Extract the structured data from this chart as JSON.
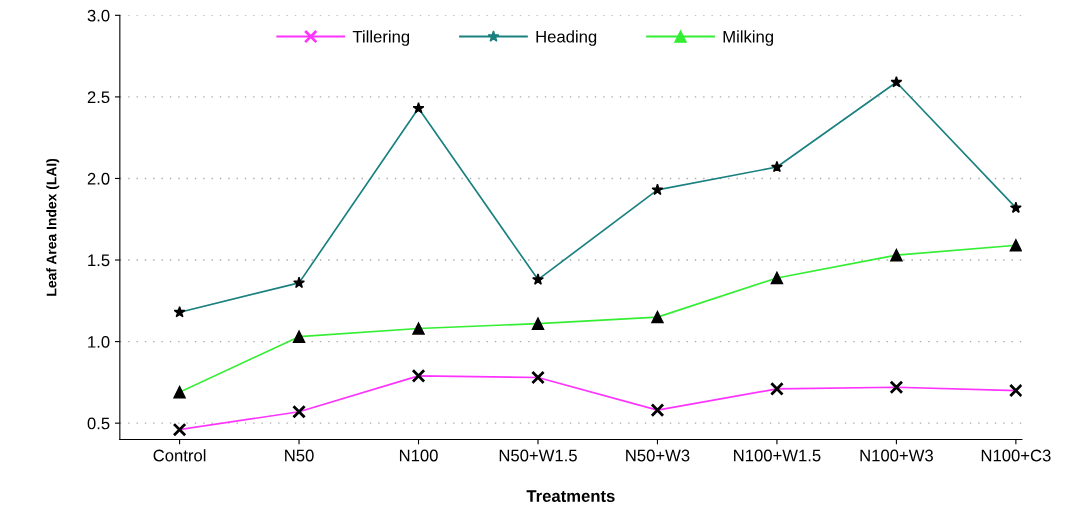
{
  "chart_data": {
    "type": "line",
    "xlabel": "Treatments",
    "ylabel": "Leaf Area Index (LAI)",
    "categories": [
      "Control",
      "N50",
      "N100",
      "N50+W1.5",
      "N50+W3",
      "N100+W1.5",
      "N100+W3",
      "N100+C3"
    ],
    "series": [
      {
        "name": "Tillering",
        "color": "#ff33ff",
        "marker": "cross",
        "values": [
          0.46,
          0.57,
          0.79,
          0.78,
          0.58,
          0.71,
          0.72,
          0.7
        ]
      },
      {
        "name": "Heading",
        "color": "#1a8080",
        "marker": "star",
        "values": [
          1.18,
          1.36,
          2.43,
          1.38,
          1.93,
          2.07,
          2.59,
          1.82
        ]
      },
      {
        "name": "Milking",
        "color": "#33ee33",
        "marker": "triangle",
        "values": [
          0.69,
          1.03,
          1.08,
          1.11,
          1.15,
          1.39,
          1.53,
          1.59
        ]
      }
    ],
    "ylim": [
      0.4,
      3.0
    ],
    "yticks": [
      0.5,
      {
        "value": 1.0,
        "label": "1.0"
      },
      1.5,
      {
        "value": 2.0,
        "label": "2.0"
      },
      2.5,
      {
        "value": 3.0,
        "label": "3.0"
      }
    ],
    "grid": "y",
    "legend": "top",
    "line_style": "solid"
  }
}
